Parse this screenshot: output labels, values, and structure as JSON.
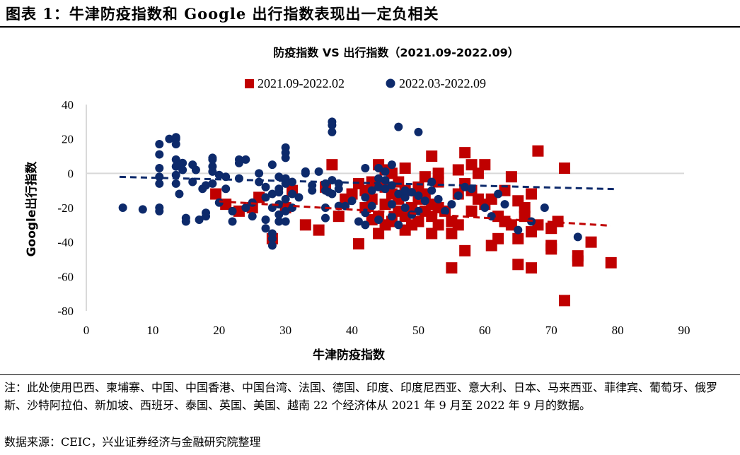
{
  "figure_title": "图表 1：牛津防疫指数和 Google 出行指数表现出一定负相关",
  "note": "注：此处使用巴西、柬埔寨、中国、中国香港、中国台湾、法国、德国、印度、印度尼西亚、意大利、日本、马来西亚、菲律宾、葡萄牙、俄罗斯、沙特阿拉伯、新加坡、西班牙、泰国、英国、美国、越南 22 个经济体从 2021 年 9 月至 2022 年 9 月的数据。",
  "source": "数据来源：CEIC，兴业证券经济与金融研究院整理",
  "colors": {
    "red": "#c00000",
    "navy": "#0d2a6b",
    "grid": "#d9d9d9"
  },
  "chart_data": {
    "type": "scatter",
    "title": "防疫指数 VS 出行指数（2021.09-2022.09）",
    "xlabel": "牛津防疫指数",
    "ylabel": "Google出行指数",
    "xlim": [
      0,
      90
    ],
    "ylim": [
      -80,
      40
    ],
    "xticks": [
      "0",
      "10",
      "20",
      "30",
      "40",
      "50",
      "60",
      "70",
      "80",
      "90"
    ],
    "yticks": [
      "40",
      "20",
      "0",
      "-20",
      "-40",
      "-60",
      "-80"
    ],
    "legend_position": "top",
    "series": [
      {
        "name": "2021.09-2022.02",
        "marker": "square",
        "color": "#c00000",
        "trendline": {
          "slope": -0.24,
          "intercept": -11.5,
          "x_range": [
            20,
            79
          ]
        },
        "points": [
          [
            19.5,
            -12
          ],
          [
            21,
            -18
          ],
          [
            23,
            -22
          ],
          [
            25,
            -20
          ],
          [
            26,
            -14
          ],
          [
            28,
            -38
          ],
          [
            30,
            -20
          ],
          [
            31,
            -10
          ],
          [
            33,
            -30
          ],
          [
            35,
            -33
          ],
          [
            36,
            -8
          ],
          [
            37,
            5
          ],
          [
            38,
            -25
          ],
          [
            39,
            -15
          ],
          [
            40,
            -12
          ],
          [
            41,
            -41
          ],
          [
            41,
            -6
          ],
          [
            42,
            -20
          ],
          [
            42,
            -10
          ],
          [
            43,
            -27
          ],
          [
            43,
            -15
          ],
          [
            43,
            -5
          ],
          [
            44,
            -35
          ],
          [
            44,
            -25
          ],
          [
            44,
            5
          ],
          [
            45,
            -30
          ],
          [
            45,
            -18
          ],
          [
            45,
            -8
          ],
          [
            45,
            2
          ],
          [
            46,
            -28
          ],
          [
            46,
            -12
          ],
          [
            46,
            0
          ],
          [
            47,
            -22
          ],
          [
            47,
            -15
          ],
          [
            47,
            -5
          ],
          [
            48,
            -33
          ],
          [
            48,
            -25
          ],
          [
            48,
            -10
          ],
          [
            48,
            3
          ],
          [
            49,
            -30
          ],
          [
            49,
            -20
          ],
          [
            50,
            -28
          ],
          [
            50,
            -15
          ],
          [
            50,
            -8
          ],
          [
            51,
            -22
          ],
          [
            51,
            -12
          ],
          [
            51,
            -2
          ],
          [
            52,
            -35
          ],
          [
            52,
            -25
          ],
          [
            52,
            -18
          ],
          [
            52,
            10
          ],
          [
            53,
            -30
          ],
          [
            53,
            -20
          ],
          [
            53,
            -5
          ],
          [
            53,
            0
          ],
          [
            54,
            -22
          ],
          [
            55,
            -35
          ],
          [
            55,
            -55
          ],
          [
            55,
            -28
          ],
          [
            56,
            2
          ],
          [
            56,
            -12
          ],
          [
            56,
            -30
          ],
          [
            57,
            -45
          ],
          [
            57,
            12
          ],
          [
            57,
            -6
          ],
          [
            58,
            -22
          ],
          [
            58,
            -10
          ],
          [
            58,
            5
          ],
          [
            59,
            -15
          ],
          [
            59,
            0
          ],
          [
            60,
            -18
          ],
          [
            60,
            5
          ],
          [
            61,
            -15
          ],
          [
            61,
            -42
          ],
          [
            62,
            -25
          ],
          [
            62,
            -38
          ],
          [
            63,
            -10
          ],
          [
            63,
            -28
          ],
          [
            64,
            -2
          ],
          [
            64,
            -30
          ],
          [
            65,
            -16
          ],
          [
            65,
            -38
          ],
          [
            65,
            -53
          ],
          [
            66,
            -20
          ],
          [
            66,
            -25
          ],
          [
            67,
            -12
          ],
          [
            67,
            -34
          ],
          [
            67,
            -55
          ],
          [
            68,
            -30
          ],
          [
            68,
            13
          ],
          [
            70,
            -44
          ],
          [
            70,
            -42
          ],
          [
            70,
            -32
          ],
          [
            71,
            -28
          ],
          [
            72,
            -74
          ],
          [
            72,
            3
          ],
          [
            74,
            -48
          ],
          [
            74,
            -51
          ],
          [
            76,
            -40
          ],
          [
            79,
            -52
          ]
        ]
      },
      {
        "name": "2022.03-2022.09",
        "marker": "circle",
        "color": "#0d2a6b",
        "trendline": {
          "slope": -0.095,
          "intercept": -1.6,
          "x_range": [
            5,
            80
          ]
        },
        "points": [
          [
            5.5,
            -20
          ],
          [
            8.5,
            -21
          ],
          [
            11,
            -20
          ],
          [
            11,
            -22
          ],
          [
            11,
            -6
          ],
          [
            11,
            -2
          ],
          [
            11,
            3
          ],
          [
            11,
            11
          ],
          [
            11,
            17
          ],
          [
            12.5,
            20
          ],
          [
            13.5,
            20
          ],
          [
            13.5,
            21
          ],
          [
            13.5,
            17
          ],
          [
            13.5,
            8
          ],
          [
            13.5,
            4
          ],
          [
            13.5,
            -1
          ],
          [
            13.5,
            -6
          ],
          [
            14,
            -12
          ],
          [
            14.5,
            2
          ],
          [
            14.5,
            6
          ],
          [
            15,
            -26
          ],
          [
            15,
            -28
          ],
          [
            16,
            -5
          ],
          [
            16,
            5
          ],
          [
            16.5,
            2
          ],
          [
            17,
            -27
          ],
          [
            17.5,
            -9
          ],
          [
            18,
            -7
          ],
          [
            18,
            -25
          ],
          [
            18,
            -23
          ],
          [
            19,
            -6
          ],
          [
            19,
            1
          ],
          [
            19,
            4
          ],
          [
            19,
            8
          ],
          [
            19,
            9
          ],
          [
            20,
            -1
          ],
          [
            20,
            -17
          ],
          [
            21,
            -2
          ],
          [
            21,
            -9
          ],
          [
            22,
            -28
          ],
          [
            22,
            -22
          ],
          [
            23,
            6
          ],
          [
            23,
            8
          ],
          [
            23,
            -3
          ],
          [
            24,
            8
          ],
          [
            24,
            -20
          ],
          [
            25,
            -25
          ],
          [
            25,
            -17
          ],
          [
            26,
            0
          ],
          [
            26,
            -5
          ],
          [
            27,
            -8
          ],
          [
            27,
            -14
          ],
          [
            27,
            -27
          ],
          [
            27,
            -32
          ],
          [
            28,
            -38
          ],
          [
            28,
            -42
          ],
          [
            28,
            -35
          ],
          [
            28,
            -20
          ],
          [
            28,
            -12
          ],
          [
            28,
            5
          ],
          [
            29,
            -28
          ],
          [
            29,
            -24
          ],
          [
            29,
            -18
          ],
          [
            29,
            -11
          ],
          [
            29,
            -2
          ],
          [
            29,
            -9
          ],
          [
            30,
            -15
          ],
          [
            30,
            -22
          ],
          [
            30,
            -6
          ],
          [
            30,
            -3
          ],
          [
            30,
            -28
          ],
          [
            30,
            15
          ],
          [
            30,
            12
          ],
          [
            30,
            9
          ],
          [
            31,
            -5
          ],
          [
            31,
            -12
          ],
          [
            31,
            -20
          ],
          [
            32,
            -14
          ],
          [
            33,
            0
          ],
          [
            33,
            1
          ],
          [
            34,
            -7
          ],
          [
            34,
            -10
          ],
          [
            35,
            1
          ],
          [
            36,
            -10
          ],
          [
            36,
            -20
          ],
          [
            36,
            -26
          ],
          [
            36,
            -6
          ],
          [
            36.5,
            -11
          ],
          [
            37,
            30
          ],
          [
            37,
            28
          ],
          [
            37,
            24
          ],
          [
            37,
            -4
          ],
          [
            37,
            -12
          ],
          [
            38,
            -9
          ],
          [
            38,
            -19
          ],
          [
            38,
            -6
          ],
          [
            39,
            -19
          ],
          [
            40,
            -16
          ],
          [
            41,
            -28
          ],
          [
            42,
            -30
          ],
          [
            42,
            -23
          ],
          [
            42,
            -14
          ],
          [
            42,
            3
          ],
          [
            43,
            -19
          ],
          [
            43,
            -10
          ],
          [
            44,
            -27
          ],
          [
            44,
            -8
          ],
          [
            44,
            3
          ],
          [
            44,
            -3
          ],
          [
            45,
            1
          ],
          [
            45,
            -4
          ],
          [
            45,
            -9
          ],
          [
            46,
            -25
          ],
          [
            46,
            -18
          ],
          [
            46,
            -7
          ],
          [
            46,
            5
          ],
          [
            47,
            -30
          ],
          [
            47,
            -12
          ],
          [
            47,
            27
          ],
          [
            48,
            -14
          ],
          [
            48,
            -20
          ],
          [
            48,
            -10
          ],
          [
            49,
            -24
          ],
          [
            49,
            -11
          ],
          [
            50,
            24
          ],
          [
            50,
            -13
          ],
          [
            50,
            -22
          ],
          [
            51,
            -16
          ],
          [
            52,
            -10
          ],
          [
            52,
            -5
          ],
          [
            53,
            -15
          ],
          [
            54,
            -22
          ],
          [
            55,
            -18
          ],
          [
            56,
            -13
          ],
          [
            57,
            -8
          ],
          [
            58,
            -9
          ],
          [
            60,
            -20
          ],
          [
            61,
            -25
          ],
          [
            62,
            -12
          ],
          [
            63,
            -18
          ],
          [
            65,
            -33
          ],
          [
            67,
            -28
          ],
          [
            69,
            -20
          ],
          [
            74,
            -37
          ]
        ]
      }
    ]
  }
}
